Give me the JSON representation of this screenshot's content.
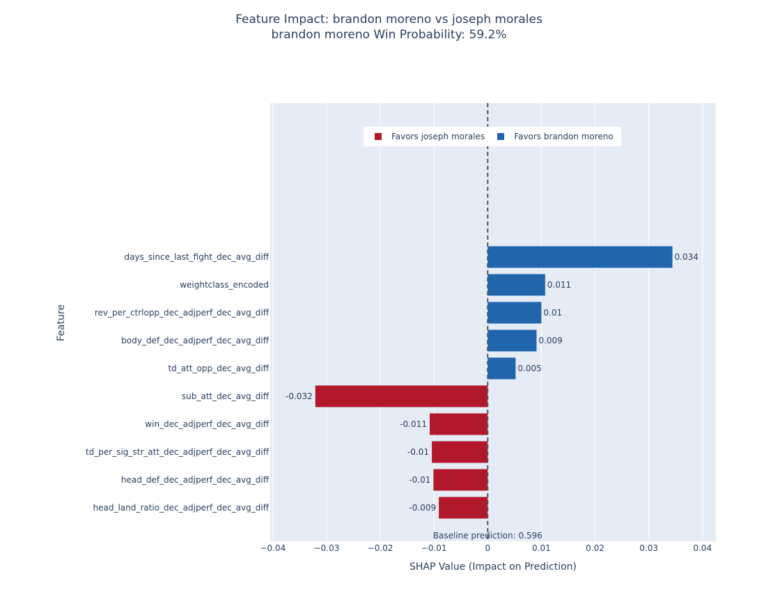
{
  "chart_data": {
    "type": "bar",
    "orientation": "horizontal",
    "title": "Feature Impact: brandon moreno vs joseph morales",
    "subtitle": "brandon moreno Win Probability: 59.2%",
    "xlabel": "SHAP Value (Impact on Prediction)",
    "ylabel": "Feature",
    "xlim": [
      -0.0405,
      0.0425
    ],
    "xticks": [
      -0.04,
      -0.03,
      -0.02,
      -0.01,
      0,
      0.01,
      0.02,
      0.03,
      0.04
    ],
    "xtick_labels": [
      "−0.04",
      "−0.03",
      "−0.02",
      "−0.01",
      "0",
      "0.01",
      "0.02",
      "0.03",
      "0.04"
    ],
    "grid": true,
    "legend_position": "top-center",
    "annotation": "Baseline prediction: 0.596",
    "categories": [
      "days_since_last_fight_dec_avg_diff",
      "weightclass_encoded",
      "rev_per_ctrlopp_dec_adjperf_dec_avg_diff",
      "body_def_dec_adjperf_dec_avg_diff",
      "td_att_opp_dec_avg_diff",
      "sub_att_dec_avg_diff",
      "win_dec_adjperf_dec_avg_diff",
      "td_per_sig_str_att_dec_adjperf_dec_avg_diff",
      "head_def_dec_adjperf_dec_avg_diff",
      "head_land_ratio_dec_adjperf_dec_avg_diff"
    ],
    "values": [
      0.0344,
      0.0107,
      0.01,
      0.0091,
      0.0052,
      -0.0321,
      -0.0108,
      -0.0104,
      -0.0101,
      -0.0091
    ],
    "value_labels": [
      "0.034",
      "0.011",
      "0.01",
      "0.009",
      "0.005",
      "-0.032",
      "-0.011",
      "-0.01",
      "-0.01",
      "-0.009"
    ],
    "series": [
      {
        "name": "Favors joseph morales",
        "color": "#b2182b"
      },
      {
        "name": "Favors brandon moreno",
        "color": "#2166ac"
      }
    ],
    "colors": {
      "plot_bg": "#e5ecf6",
      "grid": "#ffffff",
      "zero_line": "#555555",
      "text": "#2a3f5f"
    }
  }
}
